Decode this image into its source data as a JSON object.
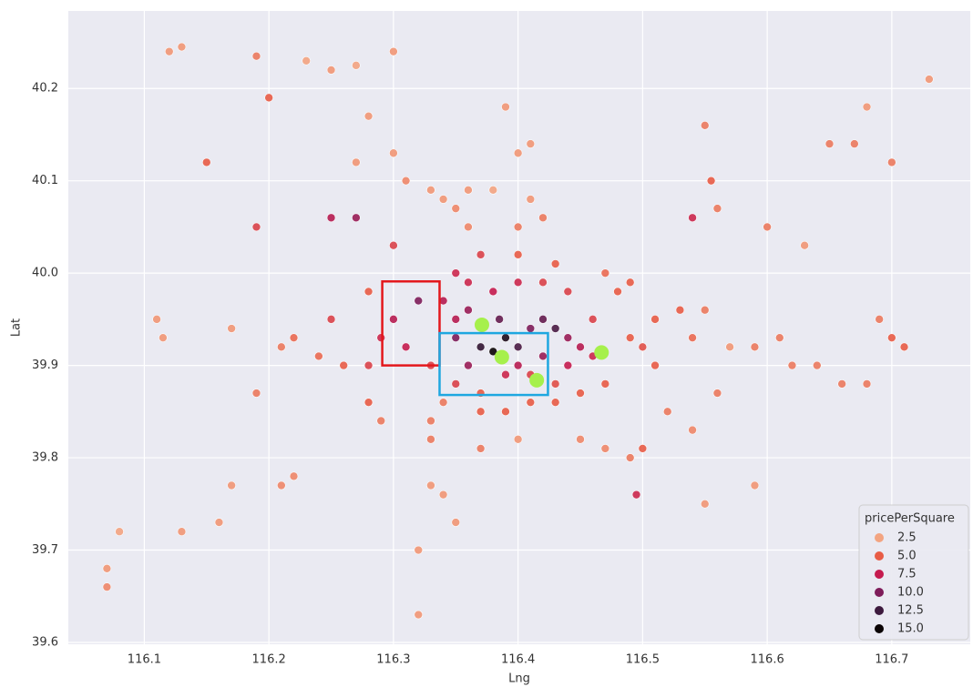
{
  "chart_data": {
    "type": "scatter",
    "x_label": "Lng",
    "y_label": "Lat",
    "legend_title": "pricePerSquare",
    "legend_loc": "lower right",
    "grid": true,
    "xlim": [
      116.039,
      116.763
    ],
    "ylim": [
      39.598,
      40.284
    ],
    "xticks": [
      116.1,
      116.2,
      116.3,
      116.4,
      116.5,
      116.6,
      116.7
    ],
    "yticks": [
      39.6,
      39.7,
      39.8,
      39.9,
      {
        "value": 40,
        "label": "40.0"
      },
      40.1,
      40.2
    ],
    "legend": [
      {
        "value": 2.5,
        "label": "2.5",
        "color": "#f3a481"
      },
      {
        "value": 5,
        "label": "5.0",
        "color": "#e85c46"
      },
      {
        "value": 7.5,
        "label": "7.5",
        "color": "#c51b4f"
      },
      {
        "value": 10,
        "label": "10.0",
        "color": "#7e1c5a"
      },
      {
        "value": 12.5,
        "label": "12.5",
        "color": "#3d1a3e"
      },
      {
        "value": 15,
        "label": "15.0",
        "color": "#0b0405"
      }
    ],
    "x": [
      116.3,
      116.13,
      116.12,
      116.23,
      116.25,
      116.27,
      116.19,
      116.2,
      116.28,
      116.3,
      116.27,
      116.36,
      116.34,
      116.38,
      116.35,
      116.41,
      116.4,
      116.39,
      116.41,
      116.42,
      116.4,
      116.31,
      116.25,
      116.27,
      116.3,
      116.19,
      116.15,
      116.11,
      116.115,
      116.17,
      116.21,
      116.22,
      116.19,
      116.17,
      116.16,
      116.13,
      116.08,
      116.07,
      116.07,
      116.21,
      116.22,
      116.32,
      116.32,
      116.33,
      116.35,
      116.34,
      116.33,
      116.37,
      116.4,
      116.45,
      116.47,
      116.49,
      116.5,
      116.495,
      116.55,
      116.59,
      116.52,
      116.54,
      116.56,
      116.57,
      116.59,
      116.61,
      116.62,
      116.64,
      116.66,
      116.68,
      116.7,
      116.71,
      116.69,
      116.65,
      116.67,
      116.68,
      116.7,
      116.73,
      116.55,
      116.555,
      116.54,
      116.6,
      116.63,
      116.56,
      116.51,
      116.53,
      116.55,
      116.54,
      116.48,
      116.47,
      116.49,
      116.46,
      116.49,
      116.51,
      116.5,
      116.47,
      116.45,
      116.43,
      116.41,
      116.39,
      116.37,
      116.35,
      116.34,
      116.33,
      116.31,
      116.3,
      116.32,
      116.29,
      116.28,
      116.26,
      116.24,
      116.25,
      116.28,
      116.35,
      116.36,
      116.37,
      116.38,
      116.39,
      116.385,
      116.4,
      116.41,
      116.42,
      116.43,
      116.44,
      116.42,
      116.4,
      116.36,
      116.35,
      116.34,
      116.36,
      116.38,
      116.4,
      116.42,
      116.44,
      116.43,
      116.4,
      116.37,
      116.35,
      116.39,
      116.41,
      116.44,
      116.45,
      116.46,
      116.43,
      116.37,
      116.33,
      116.29,
      116.28,
      116.36,
      116.33
    ],
    "y": [
      40.24,
      40.245,
      40.24,
      40.23,
      40.22,
      40.225,
      40.235,
      40.19,
      40.17,
      40.13,
      40.12,
      40.09,
      40.08,
      40.09,
      40.07,
      40.14,
      40.13,
      40.18,
      40.08,
      40.06,
      40.05,
      40.1,
      40.06,
      40.06,
      40.03,
      40.05,
      40.12,
      39.95,
      39.93,
      39.94,
      39.92,
      39.93,
      39.87,
      39.77,
      39.73,
      39.72,
      39.72,
      39.68,
      39.66,
      39.77,
      39.78,
      39.63,
      39.7,
      39.77,
      39.73,
      39.76,
      39.82,
      39.81,
      39.82,
      39.82,
      39.81,
      39.8,
      39.81,
      39.76,
      39.75,
      39.77,
      39.85,
      39.83,
      39.87,
      39.92,
      39.92,
      39.93,
      39.9,
      39.9,
      39.88,
      39.88,
      39.93,
      39.92,
      39.95,
      40.14,
      40.14,
      40.18,
      40.12,
      40.21,
      40.16,
      40.1,
      40.06,
      40.05,
      40.03,
      40.07,
      39.95,
      39.96,
      39.96,
      39.93,
      39.98,
      40.0,
      39.99,
      39.95,
      39.93,
      39.9,
      39.92,
      39.88,
      39.87,
      39.86,
      39.86,
      39.85,
      39.87,
      39.88,
      39.86,
      39.9,
      39.92,
      39.95,
      39.97,
      39.93,
      39.9,
      39.9,
      39.91,
      39.95,
      39.98,
      39.95,
      39.96,
      39.92,
      39.915,
      39.93,
      39.95,
      39.92,
      39.94,
      39.95,
      39.94,
      39.93,
      39.91,
      39.9,
      39.9,
      39.93,
      39.97,
      39.99,
      39.98,
      39.99,
      39.99,
      39.98,
      40.01,
      40.02,
      40.02,
      40.0,
      39.89,
      39.89,
      39.9,
      39.92,
      39.91,
      39.88,
      39.85,
      39.84,
      39.84,
      39.86,
      40.05,
      40.09
    ],
    "values": [
      3,
      3,
      3,
      2.5,
      3,
      2.5,
      4,
      5,
      3,
      3,
      3,
      3,
      3,
      2.5,
      3.5,
      3,
      3,
      3,
      3,
      4,
      4,
      3.5,
      8,
      9,
      6,
      6,
      5,
      3,
      3,
      3,
      4,
      4.5,
      4,
      3,
      3,
      3,
      2.5,
      3,
      3.5,
      3.5,
      3.5,
      3,
      3,
      3,
      3,
      3,
      4,
      4,
      3,
      3.5,
      3.5,
      4,
      5,
      7,
      3,
      3,
      4,
      3.5,
      4,
      3,
      4,
      4,
      4,
      4,
      4,
      4,
      5,
      5,
      4,
      4,
      4,
      3,
      4,
      3,
      4,
      5,
      7,
      4,
      3,
      4,
      5,
      5,
      4,
      4.5,
      5,
      4.5,
      5,
      6,
      5,
      5,
      5.5,
      5,
      5,
      5,
      5,
      5,
      5,
      6,
      4,
      6,
      7.5,
      8,
      10,
      7,
      6,
      5,
      4.5,
      6,
      5,
      8,
      9,
      13,
      15,
      14,
      11,
      12,
      10,
      11,
      12,
      9,
      9,
      8,
      9,
      10,
      8,
      7,
      7.5,
      7,
      6,
      6,
      5,
      5,
      6,
      7,
      7,
      6,
      7.5,
      8,
      7,
      5.5,
      5,
      4,
      4,
      5,
      3.5,
      3
    ],
    "highlight_points": {
      "color": "#a6f04c",
      "x": [
        116.371,
        116.387,
        116.415,
        116.467
      ],
      "y": [
        39.944,
        39.909,
        39.884,
        39.914
      ]
    },
    "highlight_boxes": [
      {
        "color": "#e3171c",
        "xlim": [
          116.291,
          116.337
        ],
        "ylim": [
          39.9,
          39.991
        ]
      },
      {
        "color": "#1ea7e0",
        "xlim": [
          116.337,
          116.424
        ],
        "ylim": [
          39.868,
          39.935
        ]
      }
    ]
  }
}
